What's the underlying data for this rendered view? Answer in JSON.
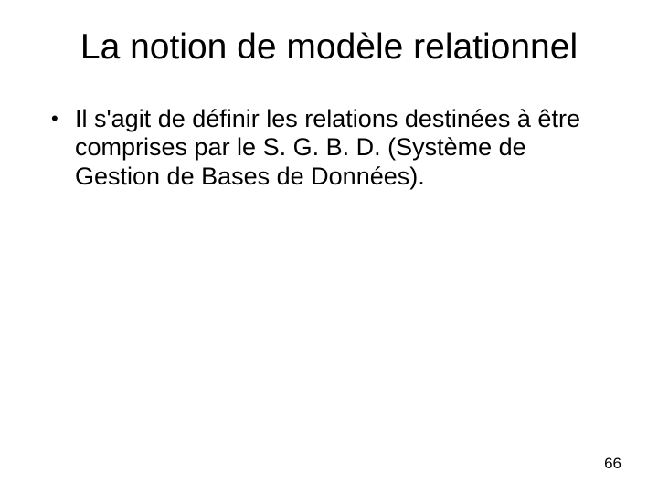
{
  "slide": {
    "title": "La notion de modèle relationnel",
    "bullets": [
      "Il s'agit de définir les relations destinées à être comprises par le S. G. B. D. (Système de Gestion de Bases de Données)."
    ],
    "page_number": "66",
    "background_color": "#ffffff",
    "text_color": "#000000",
    "title_fontsize": 39,
    "body_fontsize": 27,
    "pagenum_fontsize": 17,
    "font_family": "Arial"
  }
}
